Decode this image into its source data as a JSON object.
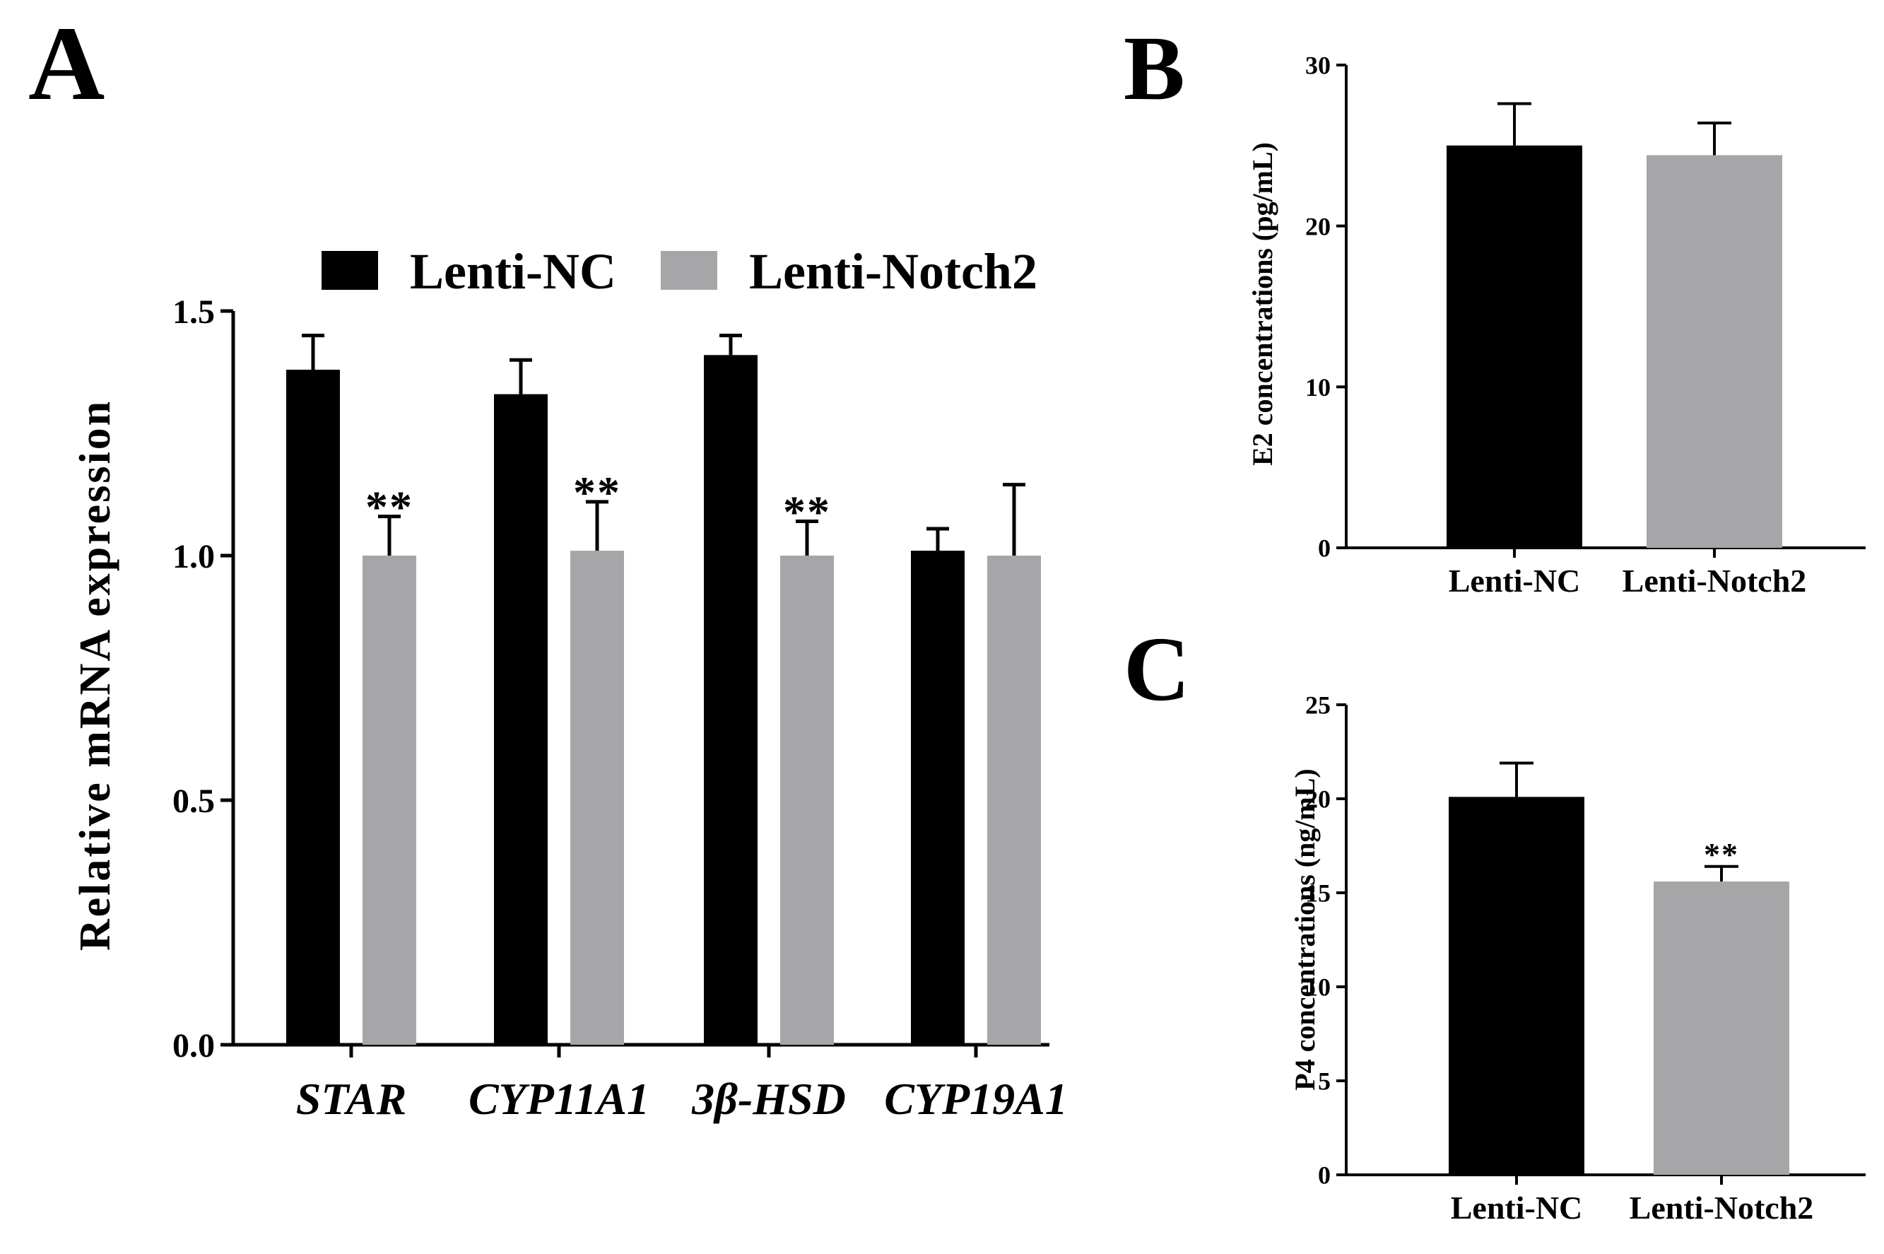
{
  "colors": {
    "nc": "#000000",
    "notch2": "#a6a6a8",
    "axis": "#000000"
  },
  "chart_data": [
    {
      "id": "A",
      "panel_label": "A",
      "type": "bar",
      "categories": [
        "STAR",
        "CYP11A1",
        "3β-HSD",
        "CYP19A1"
      ],
      "series": [
        {
          "name": "Lenti-NC",
          "values": [
            1.38,
            1.33,
            1.41,
            1.01
          ],
          "errors": [
            0.07,
            0.07,
            0.04,
            0.045
          ]
        },
        {
          "name": "Lenti-Notch2",
          "values": [
            1.0,
            1.01,
            1.0,
            1.0
          ],
          "errors": [
            0.08,
            0.1,
            0.07,
            0.145
          ]
        }
      ],
      "significance": [
        {
          "category": "STAR",
          "series": "Lenti-Notch2",
          "text": "**"
        },
        {
          "category": "CYP11A1",
          "series": "Lenti-Notch2",
          "text": "**"
        },
        {
          "category": "3β-HSD",
          "series": "Lenti-Notch2",
          "text": "**"
        }
      ],
      "ylabel": "Relative  mRNA expression",
      "ylim": [
        0,
        1.5
      ],
      "yticks": [
        "0.0",
        "0.5",
        "1.0",
        "1.5"
      ],
      "ytick_values": [
        0,
        0.5,
        1.0,
        1.5
      ],
      "legend": [
        "Lenti-NC",
        "Lenti-Notch2"
      ],
      "legend_position": "top"
    },
    {
      "id": "B",
      "panel_label": "B",
      "type": "bar",
      "categories": [
        "Lenti-NC",
        "Lenti-Notch2"
      ],
      "values": [
        25.0,
        24.4
      ],
      "errors": [
        2.6,
        2.0
      ],
      "ylabel": "E2 concentrations (pg/mL)",
      "ylim": [
        0,
        30
      ],
      "yticks": [
        "0",
        "10",
        "20",
        "30"
      ],
      "ytick_values": [
        0,
        10,
        20,
        30
      ],
      "significance": []
    },
    {
      "id": "C",
      "panel_label": "C",
      "type": "bar",
      "categories": [
        "Lenti-NC",
        "Lenti-Notch2"
      ],
      "values": [
        20.1,
        15.6
      ],
      "errors": [
        1.8,
        0.8
      ],
      "ylabel": "P4 concentrations (ng/mL)",
      "ylim": [
        0,
        25
      ],
      "yticks": [
        "0",
        "5",
        "10",
        "15",
        "20",
        "25"
      ],
      "ytick_values": [
        0,
        5,
        10,
        15,
        20,
        25
      ],
      "significance": [
        {
          "category": "Lenti-Notch2",
          "text": "**"
        }
      ]
    }
  ]
}
